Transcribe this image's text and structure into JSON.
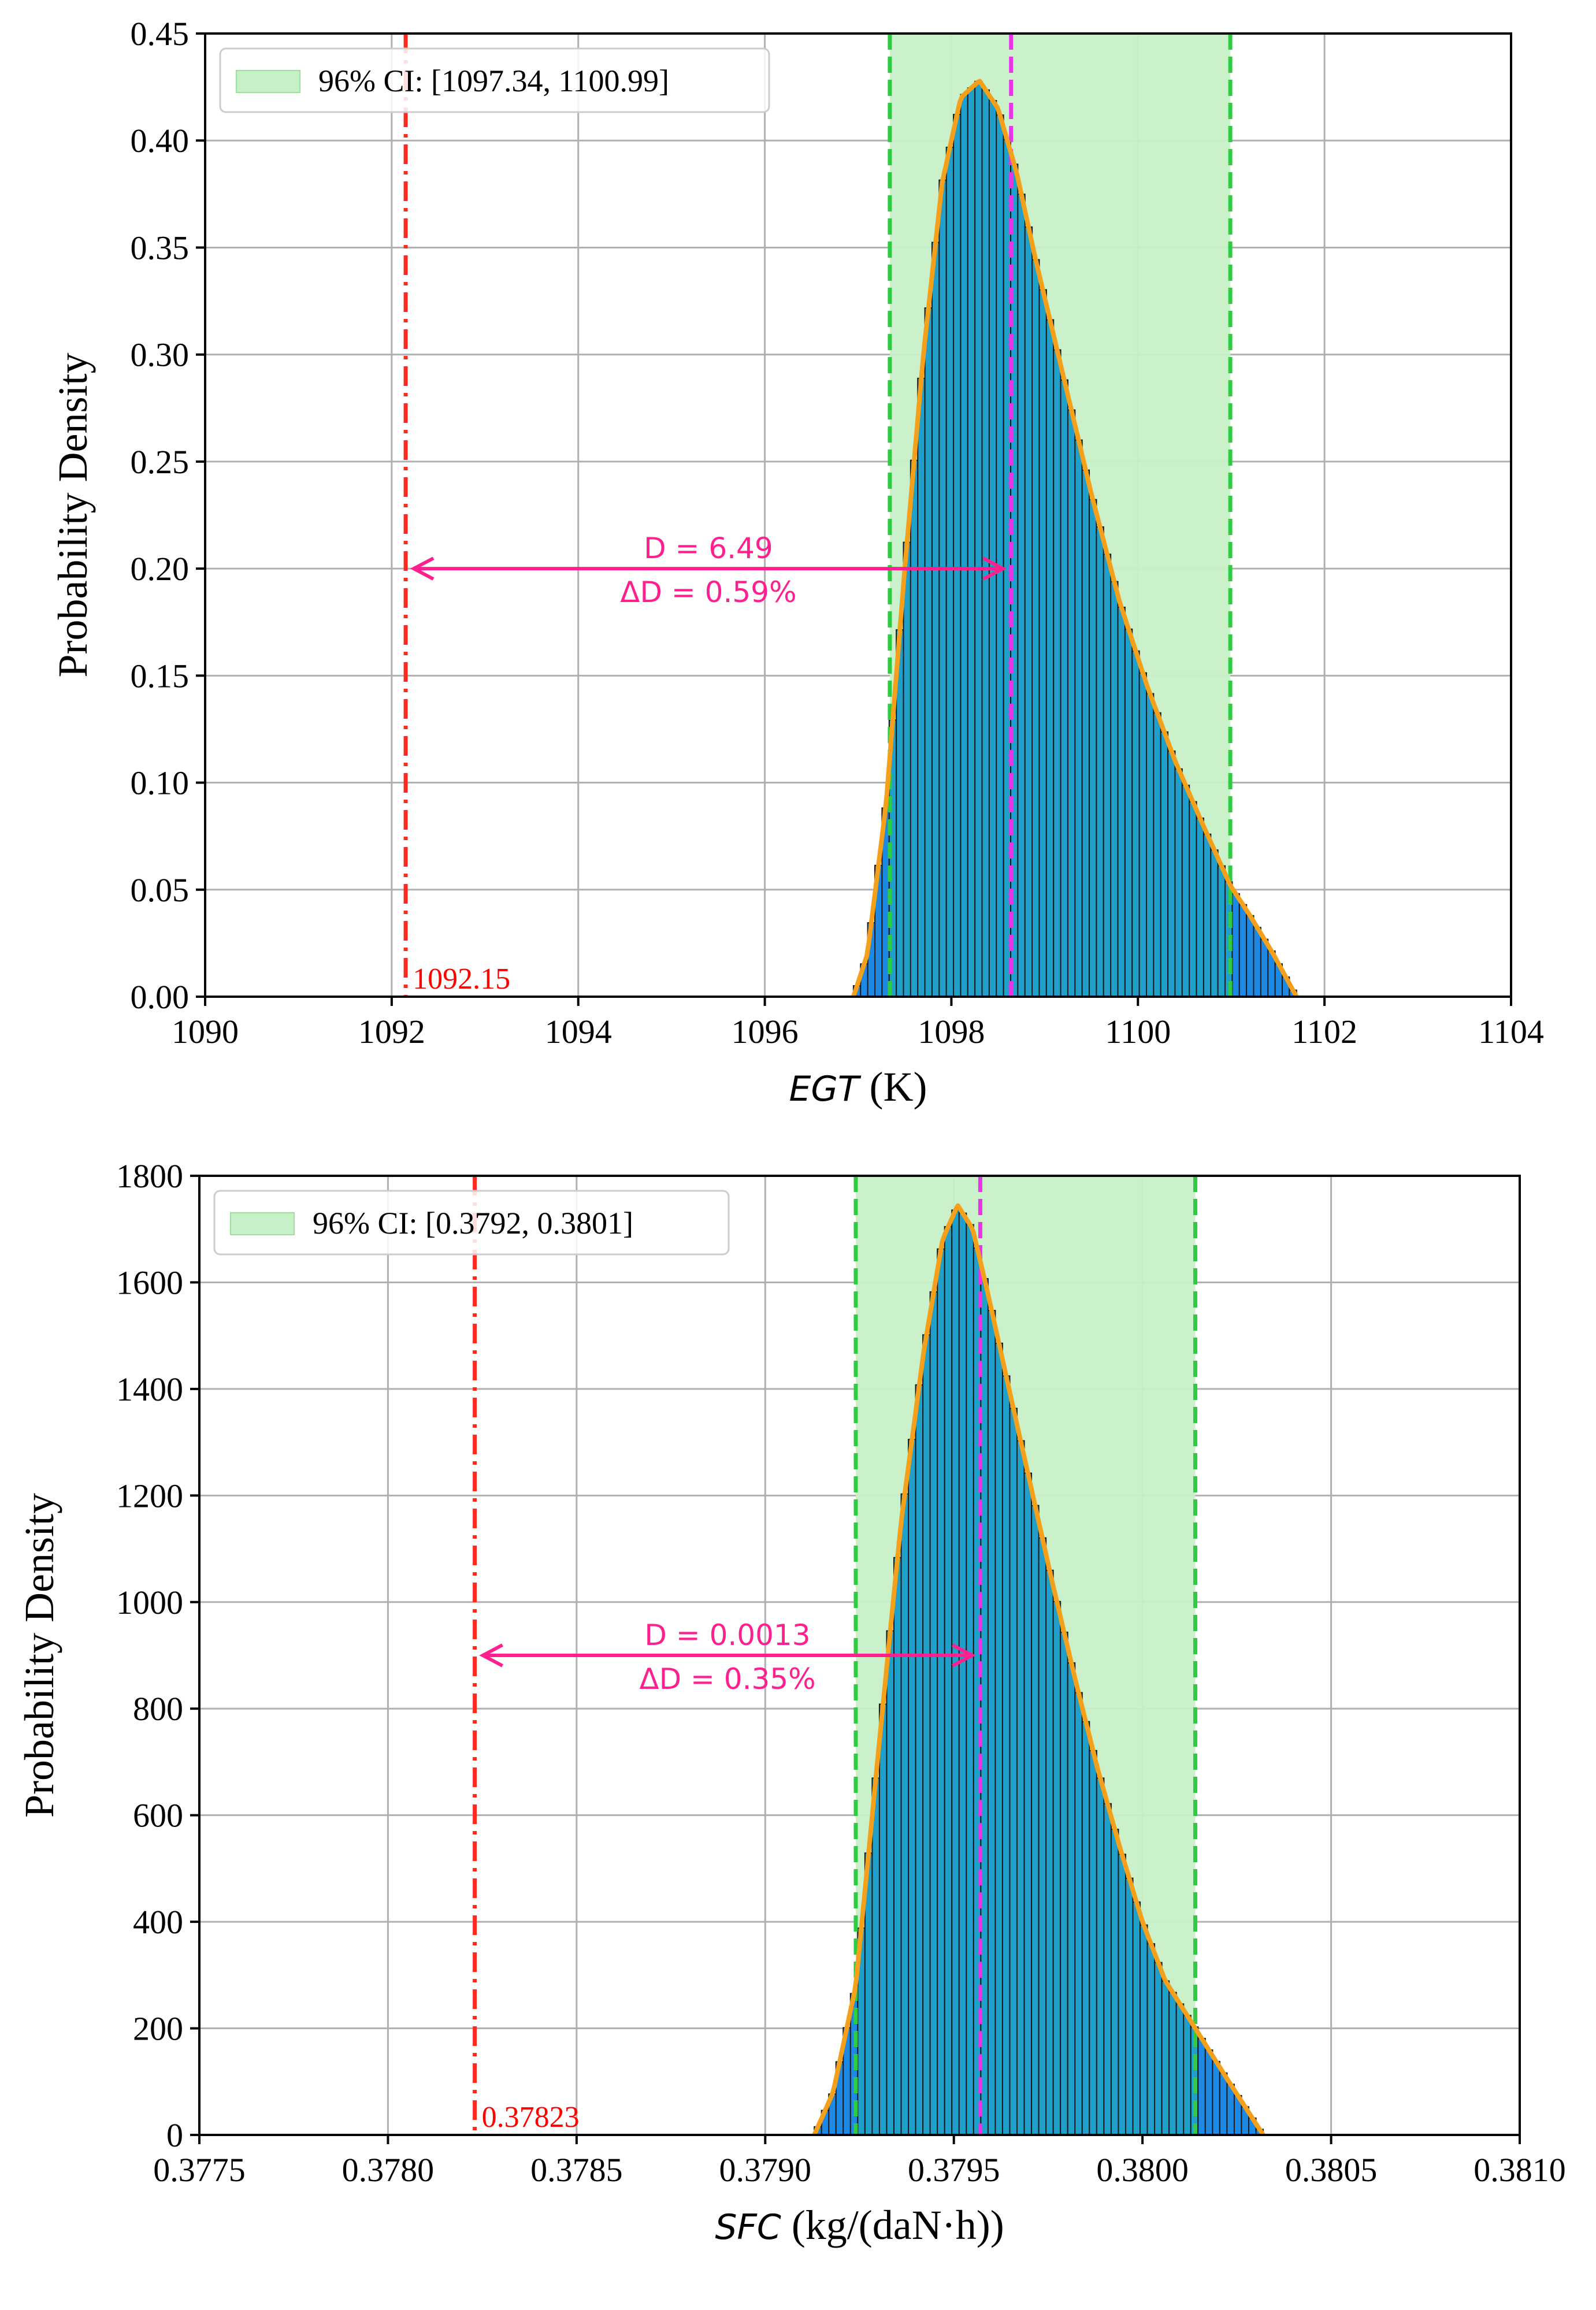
{
  "chart_data": [
    {
      "type": "histogram",
      "xlabel_var": "EGT",
      "xlabel_unit": " (K)",
      "ylabel": "Probability Density",
      "xlim": [
        1090,
        1104
      ],
      "ylim": [
        0,
        0.45
      ],
      "x_ticks": [
        1090,
        1092,
        1094,
        1096,
        1098,
        1100,
        1102,
        1104
      ],
      "x_tick_labels": [
        "1090",
        "1092",
        "1094",
        "1096",
        "1098",
        "1100",
        "1102",
        "1104"
      ],
      "y_ticks": [
        0,
        0.05,
        0.1,
        0.15,
        0.2,
        0.25,
        0.3,
        0.35,
        0.4,
        0.45
      ],
      "y_tick_labels": [
        "0.00",
        "0.05",
        "0.10",
        "0.15",
        "0.20",
        "0.25",
        "0.30",
        "0.35",
        "0.40",
        "0.45"
      ],
      "legend": "96% CI: [1097.34, 1100.99]",
      "ci": [
        1097.34,
        1100.99
      ],
      "mean": 1098.64,
      "reference": 1092.15,
      "reference_label": "1092.15",
      "arrow_y": 0.2,
      "annotation_d": "D = 6.49",
      "annotation_dd": "ΔD = 0.59%",
      "density_curve": [
        [
          1096.95,
          0.0
        ],
        [
          1097.1,
          0.02
        ],
        [
          1097.3,
          0.09
        ],
        [
          1097.5,
          0.2
        ],
        [
          1097.7,
          0.3
        ],
        [
          1097.9,
          0.38
        ],
        [
          1098.1,
          0.42
        ],
        [
          1098.3,
          0.428
        ],
        [
          1098.5,
          0.415
        ],
        [
          1098.7,
          0.385
        ],
        [
          1098.9,
          0.345
        ],
        [
          1099.2,
          0.29
        ],
        [
          1099.5,
          0.235
        ],
        [
          1099.8,
          0.185
        ],
        [
          1100.1,
          0.145
        ],
        [
          1100.4,
          0.11
        ],
        [
          1100.7,
          0.08
        ],
        [
          1100.99,
          0.052
        ],
        [
          1101.2,
          0.038
        ],
        [
          1101.45,
          0.02
        ],
        [
          1101.7,
          0.0
        ]
      ],
      "colors": {
        "bar": "#1f9fc9",
        "bar_tail": "#1e88e5",
        "curve": "#f5a01a",
        "ci_fill": "#c8f0c8",
        "ci_line": "#2ecc40",
        "mean_line": "#e833e8",
        "ref_line": "#ff2a1f",
        "arrow": "#ff1f8f"
      }
    },
    {
      "type": "histogram",
      "xlabel_var": "SFC",
      "xlabel_unit": " (kg/(daN·h))",
      "ylabel": "Probability Density",
      "xlim": [
        0.3775,
        0.381
      ],
      "ylim": [
        0,
        1800
      ],
      "x_ticks": [
        0.3775,
        0.378,
        0.3785,
        0.379,
        0.3795,
        0.38,
        0.3805,
        0.381
      ],
      "x_tick_labels": [
        "0.3775",
        "0.3780",
        "0.3785",
        "0.3790",
        "0.3795",
        "0.3800",
        "0.3805",
        "0.3810"
      ],
      "y_ticks": [
        0,
        200,
        400,
        600,
        800,
        1000,
        1200,
        1400,
        1600,
        1800
      ],
      "y_tick_labels": [
        "0",
        "200",
        "400",
        "600",
        "800",
        "1000",
        "1200",
        "1400",
        "1600",
        "1800"
      ],
      "legend": "96% CI: [0.3792, 0.3801]",
      "ci": [
        0.37924,
        0.38014
      ],
      "mean": 0.37957,
      "reference": 0.37823,
      "reference_label": "0.37823",
      "arrow_y": 900,
      "annotation_d": "D = 0.0013",
      "annotation_dd": "ΔD = 0.35%",
      "density_curve": [
        [
          0.37913,
          0.0
        ],
        [
          0.37918,
          80
        ],
        [
          0.37924,
          280
        ],
        [
          0.3793,
          720
        ],
        [
          0.37936,
          1150
        ],
        [
          0.37942,
          1470
        ],
        [
          0.37947,
          1680
        ],
        [
          0.37951,
          1745
        ],
        [
          0.37955,
          1700
        ],
        [
          0.37959,
          1580
        ],
        [
          0.37964,
          1420
        ],
        [
          0.3797,
          1230
        ],
        [
          0.37976,
          1040
        ],
        [
          0.37982,
          860
        ],
        [
          0.37988,
          690
        ],
        [
          0.37994,
          540
        ],
        [
          0.38,
          400
        ],
        [
          0.38006,
          290
        ],
        [
          0.38014,
          200
        ],
        [
          0.38022,
          110
        ],
        [
          0.38032,
          0.0
        ]
      ],
      "colors": {
        "bar": "#1f9fc9",
        "bar_tail": "#1e88e5",
        "curve": "#f5a01a",
        "ci_fill": "#c8f0c8",
        "ci_line": "#2ecc40",
        "mean_line": "#e833e8",
        "ref_line": "#ff2a1f",
        "arrow": "#ff1f8f"
      }
    }
  ]
}
